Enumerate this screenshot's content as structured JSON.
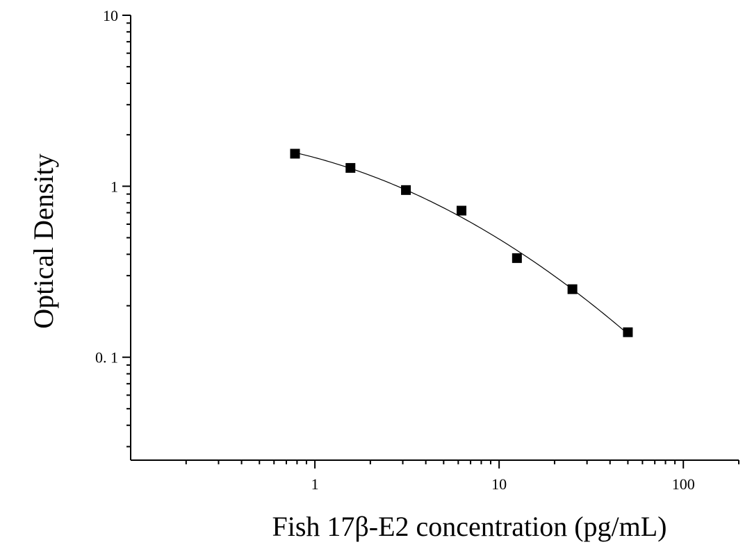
{
  "chart_data": {
    "type": "scatter",
    "xlabel": "Fish 17β-E2 concentration (pg/mL)",
    "ylabel": "Optical Density",
    "xscale": "log",
    "yscale": "log",
    "xlim": [
      0.1,
      200
    ],
    "ylim": [
      0.025,
      10
    ],
    "x_ticks": [
      {
        "value": 1,
        "label": "1"
      },
      {
        "value": 10,
        "label": "10"
      },
      {
        "value": 100,
        "label": "100"
      }
    ],
    "y_ticks": [
      {
        "value": 0.1,
        "label": "0. 1"
      },
      {
        "value": 1,
        "label": "1"
      },
      {
        "value": 10,
        "label": "10"
      }
    ],
    "grid": false,
    "series": [
      {
        "marker": "square",
        "x": [
          0.78,
          1.56,
          3.12,
          6.25,
          12.5,
          25,
          50
        ],
        "y": [
          1.55,
          1.28,
          0.95,
          0.72,
          0.38,
          0.25,
          0.14
        ]
      }
    ],
    "fit_curve": true,
    "colors": {
      "marker": "#000000",
      "line": "#000000",
      "axis": "#000000"
    }
  }
}
